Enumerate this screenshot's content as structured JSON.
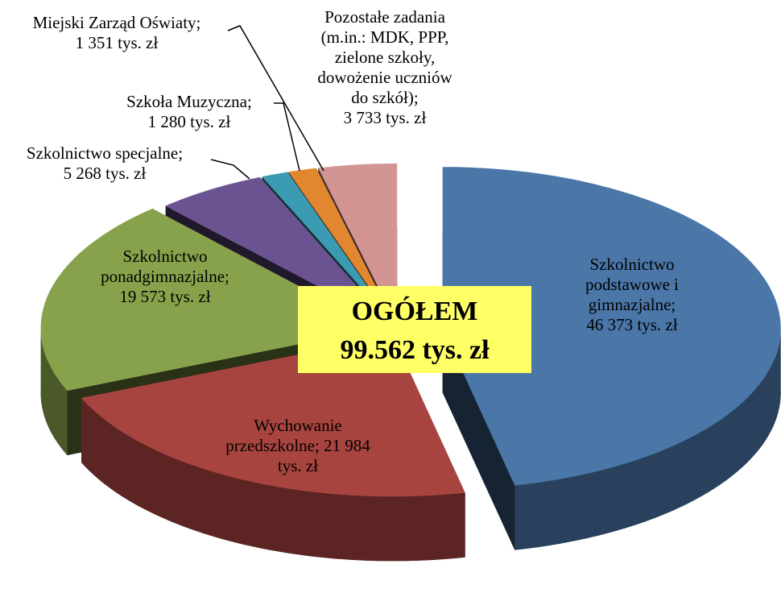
{
  "chart_data": {
    "type": "pie",
    "values": [
      46373,
      21984,
      19573,
      5268,
      1280,
      1351,
      3733
    ],
    "value_labels": [
      "Szkolnictwo\npodstawowe i\ngimnazjalne;\n46 373 tys. zł",
      "Wychowanie\nprzedszkolne; 21 984\ntys. zł",
      "Szkolnictwo\nponadgimnazjalne;\n19 573 tys. zł",
      "Szkolnictwo specjalne;\n5 268 tys. zł",
      "Szkoła Muzyczna;\n1 280 tys. zł",
      "Miejski Zarząd Oświaty;\n1 351 tys. zł",
      "Pozostałe zadania\n(m.in.: MDK, PPP,\nzielone szkoły,\ndowożenie uczniów\ndo szkół);\n3 733 tys. zł"
    ],
    "colors": [
      "#4a76a8",
      "#a8443f",
      "#88a24b",
      "#6b5392",
      "#3b9bb2",
      "#e0872f",
      "#d39494"
    ],
    "annotation": {
      "title": "OGÓŁEM",
      "text": "99.562 tys. zł"
    }
  }
}
